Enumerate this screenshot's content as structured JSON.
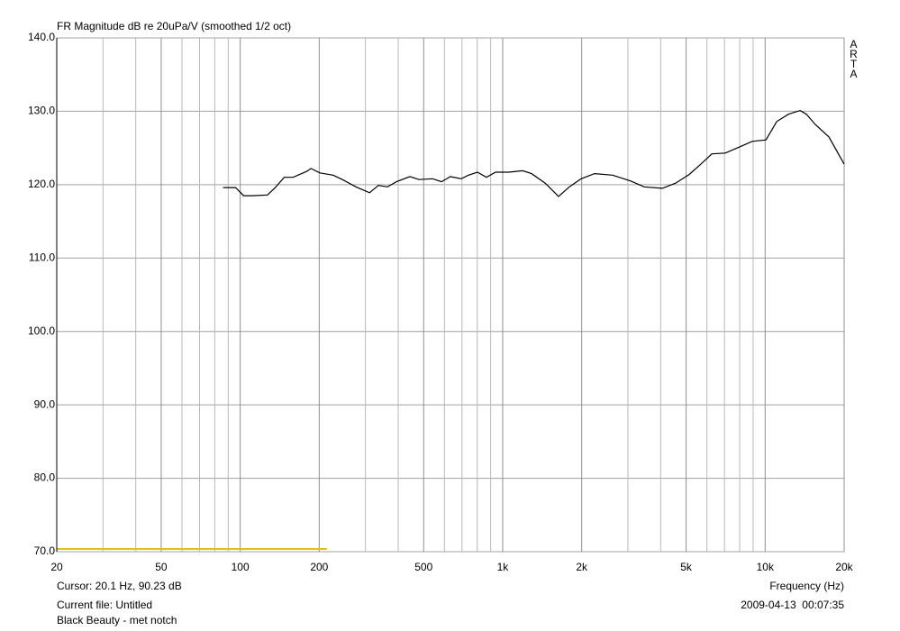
{
  "chart_data": {
    "type": "line",
    "title": "FR Magnitude dB re 20uPa/V (smoothed 1/2 oct)",
    "x_label": "Frequency (Hz)",
    "brand": "ARTA",
    "cursor": "Cursor: 20.1 Hz, 90.23 dB",
    "file": "Current file: Untitled",
    "timestamp": "2009-04-13  00:07:35",
    "description": "Black Beauty - met notch",
    "xscale": "log",
    "grid": true,
    "xlim": [
      20,
      20000
    ],
    "ylim": [
      70,
      140
    ],
    "xticks": [
      20,
      50,
      100,
      200,
      500,
      {
        "value": 1000,
        "label": "1k"
      },
      {
        "value": 2000,
        "label": "2k"
      },
      {
        "value": 5000,
        "label": "5k"
      },
      {
        "value": 10000,
        "label": "10k"
      },
      {
        "value": 20000,
        "label": "20k"
      }
    ],
    "xminorticks": [
      30,
      40,
      60,
      70,
      80,
      90,
      300,
      400,
      600,
      700,
      800,
      900,
      3000,
      4000,
      6000,
      7000,
      8000,
      9000
    ],
    "yticks": [
      {
        "value": 70,
        "label": "70.0"
      },
      {
        "value": 80,
        "label": "80.0"
      },
      {
        "value": 90,
        "label": "90.0"
      },
      {
        "value": 100,
        "label": "100.0"
      },
      {
        "value": 110,
        "label": "110.0"
      },
      {
        "value": 120,
        "label": "120.0"
      },
      {
        "value": 130,
        "label": "130.0"
      },
      {
        "value": 140,
        "label": "140.0"
      }
    ],
    "x": [
      86,
      96,
      103,
      111,
      127,
      136,
      147,
      159,
      179,
      186,
      201,
      226,
      245,
      276,
      311,
      336,
      364,
      394,
      443,
      480,
      541,
      585,
      632,
      695,
      741,
      802,
      867,
      940,
      1057,
      1191,
      1288,
      1452,
      1633,
      1795,
      1991,
      2240,
      2624,
      3076,
      3459,
      4055,
      4560,
      5140,
      5649,
      6266,
      7047,
      7943,
      8933,
      10070,
      11070,
      12270,
      13590,
      14360,
      15530,
      17500,
      20000
    ],
    "series": [
      {
        "color": "#000000",
        "values": [
          119.6,
          119.6,
          118.5,
          118.5,
          118.6,
          119.6,
          121.0,
          121.0,
          121.8,
          122.2,
          121.6,
          121.3,
          120.7,
          119.7,
          118.9,
          119.9,
          119.7,
          120.4,
          121.1,
          120.7,
          120.8,
          120.4,
          121.1,
          120.8,
          121.3,
          121.7,
          121.0,
          121.7,
          121.7,
          121.9,
          121.5,
          120.2,
          118.4,
          119.7,
          120.8,
          121.5,
          121.3,
          120.5,
          119.7,
          119.5,
          120.2,
          121.4,
          122.7,
          124.2,
          124.3,
          125.1,
          125.9,
          126.1,
          128.6,
          129.6,
          130.1,
          129.6,
          128.2,
          126.5,
          122.8
        ]
      }
    ]
  }
}
